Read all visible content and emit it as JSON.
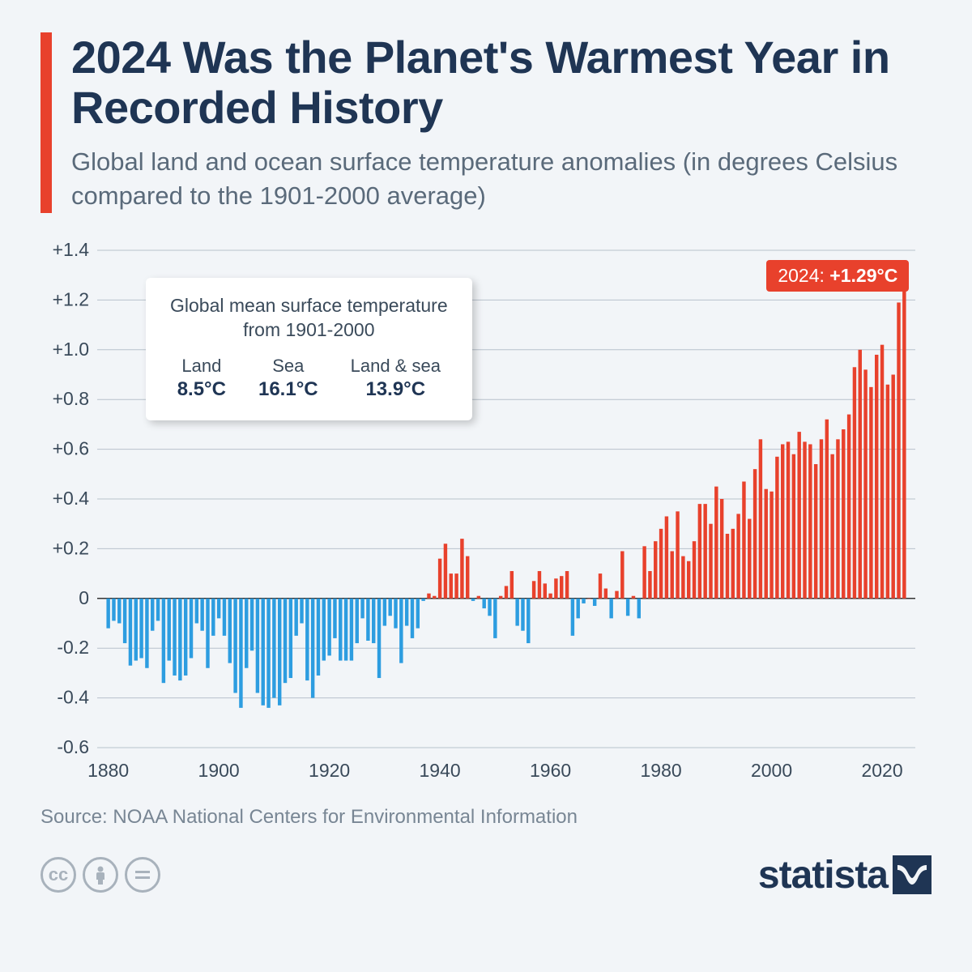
{
  "header": {
    "title": "2024 Was the Planet's Warmest Year in Recorded History",
    "subtitle": "Global land and ocean surface temperature anomalies (in degrees Celsius compared to the 1901-2000 average)"
  },
  "info_box": {
    "title1": "Global mean surface temperature",
    "title2": "from 1901-2000",
    "items": [
      {
        "label": "Land",
        "value": "8.5°C"
      },
      {
        "label": "Sea",
        "value": "16.1°C"
      },
      {
        "label": "Land & sea",
        "value": "13.9°C"
      }
    ]
  },
  "callout": {
    "year": "2024:",
    "value": "+1.29°C"
  },
  "source": "Source: NOAA National Centers for Environmental Information",
  "logo": "statista",
  "chart": {
    "type": "bar",
    "background_color": "#f2f5f8",
    "grid_color": "#b8c2cc",
    "axis_color": "#333333",
    "bar_color_positive": "#e8412c",
    "bar_color_negative": "#2d9de0",
    "y_min": -0.6,
    "y_max": 1.4,
    "y_ticks": [
      -0.6,
      -0.4,
      -0.2,
      0,
      0.2,
      0.4,
      0.6,
      0.8,
      1.0,
      1.2,
      1.4
    ],
    "y_tick_labels": [
      "-0.6",
      "-0.4",
      "-0.2",
      "0",
      "+0.2",
      "+0.4",
      "+0.6",
      "+0.8",
      "+1.0",
      "+1.2",
      "+1.4"
    ],
    "x_min": 1878,
    "x_max": 2026,
    "x_ticks": [
      1880,
      1900,
      1920,
      1940,
      1960,
      1980,
      2000,
      2020
    ],
    "tick_font_size": 23,
    "tick_color": "#3a4a5a",
    "bar_gap_ratio": 0.35,
    "years": [
      1880,
      1881,
      1882,
      1883,
      1884,
      1885,
      1886,
      1887,
      1888,
      1889,
      1890,
      1891,
      1892,
      1893,
      1894,
      1895,
      1896,
      1897,
      1898,
      1899,
      1900,
      1901,
      1902,
      1903,
      1904,
      1905,
      1906,
      1907,
      1908,
      1909,
      1910,
      1911,
      1912,
      1913,
      1914,
      1915,
      1916,
      1917,
      1918,
      1919,
      1920,
      1921,
      1922,
      1923,
      1924,
      1925,
      1926,
      1927,
      1928,
      1929,
      1930,
      1931,
      1932,
      1933,
      1934,
      1935,
      1936,
      1937,
      1938,
      1939,
      1940,
      1941,
      1942,
      1943,
      1944,
      1945,
      1946,
      1947,
      1948,
      1949,
      1950,
      1951,
      1952,
      1953,
      1954,
      1955,
      1956,
      1957,
      1958,
      1959,
      1960,
      1961,
      1962,
      1963,
      1964,
      1965,
      1966,
      1967,
      1968,
      1969,
      1970,
      1971,
      1972,
      1973,
      1974,
      1975,
      1976,
      1977,
      1978,
      1979,
      1980,
      1981,
      1982,
      1983,
      1984,
      1985,
      1986,
      1987,
      1988,
      1989,
      1990,
      1991,
      1992,
      1993,
      1994,
      1995,
      1996,
      1997,
      1998,
      1999,
      2000,
      2001,
      2002,
      2003,
      2004,
      2005,
      2006,
      2007,
      2008,
      2009,
      2010,
      2011,
      2012,
      2013,
      2014,
      2015,
      2016,
      2017,
      2018,
      2019,
      2020,
      2021,
      2022,
      2023,
      2024
    ],
    "values": [
      -0.12,
      -0.09,
      -0.1,
      -0.18,
      -0.27,
      -0.25,
      -0.24,
      -0.28,
      -0.13,
      -0.09,
      -0.34,
      -0.25,
      -0.31,
      -0.33,
      -0.31,
      -0.24,
      -0.1,
      -0.13,
      -0.28,
      -0.15,
      -0.08,
      -0.15,
      -0.26,
      -0.38,
      -0.44,
      -0.28,
      -0.21,
      -0.38,
      -0.43,
      -0.44,
      -0.4,
      -0.43,
      -0.34,
      -0.32,
      -0.15,
      -0.1,
      -0.33,
      -0.4,
      -0.31,
      -0.25,
      -0.23,
      -0.16,
      -0.25,
      -0.25,
      -0.25,
      -0.18,
      -0.08,
      -0.17,
      -0.18,
      -0.32,
      -0.11,
      -0.07,
      -0.12,
      -0.26,
      -0.11,
      -0.16,
      -0.12,
      -0.01,
      0.02,
      0.01,
      0.16,
      0.22,
      0.1,
      0.1,
      0.24,
      0.17,
      -0.01,
      0.01,
      -0.04,
      -0.07,
      -0.16,
      0.01,
      0.05,
      0.11,
      -0.11,
      -0.13,
      -0.18,
      0.07,
      0.11,
      0.06,
      0.02,
      0.08,
      0.09,
      0.11,
      -0.15,
      -0.08,
      -0.02,
      0.0,
      -0.03,
      0.1,
      0.04,
      -0.08,
      0.03,
      0.19,
      -0.07,
      0.01,
      -0.08,
      0.21,
      0.11,
      0.23,
      0.28,
      0.33,
      0.19,
      0.35,
      0.17,
      0.15,
      0.23,
      0.38,
      0.38,
      0.3,
      0.45,
      0.4,
      0.26,
      0.28,
      0.34,
      0.47,
      0.32,
      0.52,
      0.64,
      0.44,
      0.43,
      0.57,
      0.62,
      0.63,
      0.58,
      0.67,
      0.63,
      0.62,
      0.54,
      0.64,
      0.72,
      0.58,
      0.64,
      0.68,
      0.74,
      0.93,
      1.0,
      0.92,
      0.85,
      0.98,
      1.02,
      0.86,
      0.9,
      1.19,
      1.29
    ]
  }
}
